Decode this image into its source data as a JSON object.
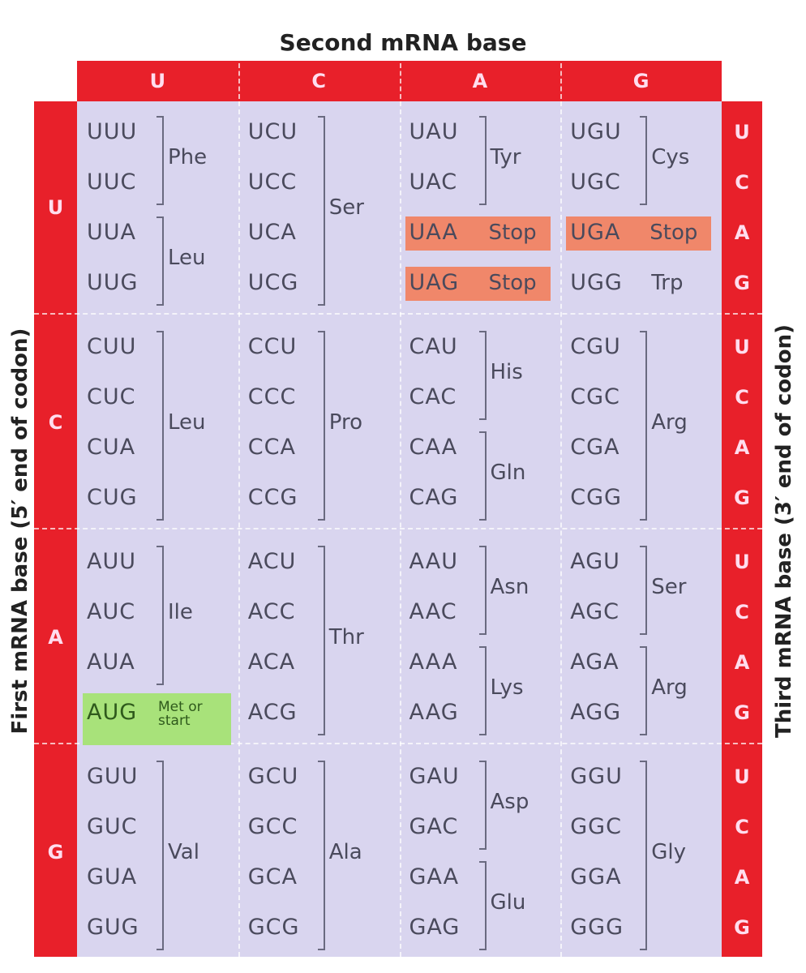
{
  "title": "Second mRNA base",
  "left_label": "First mRNA base  (5′ end of codon)",
  "right_label": "Third mRNA base  (3′ end of codon)",
  "second_bases": [
    "U",
    "C",
    "A",
    "G"
  ],
  "third_bases": [
    "U",
    "C",
    "A",
    "G"
  ],
  "colors": {
    "header": "#e8202a",
    "body": "#d9d5ef",
    "stop": "#f0876a",
    "start": "#a8e27a"
  },
  "rows": [
    {
      "base": "U",
      "cells": [
        {
          "codons": [
            "UUU",
            "UUC",
            "UUA",
            "UUG"
          ],
          "groups": [
            {
              "from": 0,
              "to": 1,
              "aa": "Phe"
            },
            {
              "from": 2,
              "to": 3,
              "aa": "Leu"
            }
          ]
        },
        {
          "codons": [
            "UCU",
            "UCC",
            "UCA",
            "UCG"
          ],
          "groups": [
            {
              "from": 0,
              "to": 3,
              "aa": "Ser"
            }
          ]
        },
        {
          "codons": [
            "UAU",
            "UAC",
            "UAA",
            "UAG"
          ],
          "groups": [
            {
              "from": 0,
              "to": 1,
              "aa": "Tyr"
            },
            {
              "from": 2,
              "to": 2,
              "aa": "Stop",
              "highlight": "stop"
            },
            {
              "from": 3,
              "to": 3,
              "aa": "Stop",
              "highlight": "stop"
            }
          ]
        },
        {
          "codons": [
            "UGU",
            "UGC",
            "UGA",
            "UGG"
          ],
          "groups": [
            {
              "from": 0,
              "to": 1,
              "aa": "Cys"
            },
            {
              "from": 2,
              "to": 2,
              "aa": "Stop",
              "highlight": "stop"
            },
            {
              "from": 3,
              "to": 3,
              "aa": "Trp"
            }
          ]
        }
      ]
    },
    {
      "base": "C",
      "cells": [
        {
          "codons": [
            "CUU",
            "CUC",
            "CUA",
            "CUG"
          ],
          "groups": [
            {
              "from": 0,
              "to": 3,
              "aa": "Leu"
            }
          ]
        },
        {
          "codons": [
            "CCU",
            "CCC",
            "CCA",
            "CCG"
          ],
          "groups": [
            {
              "from": 0,
              "to": 3,
              "aa": "Pro"
            }
          ]
        },
        {
          "codons": [
            "CAU",
            "CAC",
            "CAA",
            "CAG"
          ],
          "groups": [
            {
              "from": 0,
              "to": 1,
              "aa": "His"
            },
            {
              "from": 2,
              "to": 3,
              "aa": "Gln"
            }
          ]
        },
        {
          "codons": [
            "CGU",
            "CGC",
            "CGA",
            "CGG"
          ],
          "groups": [
            {
              "from": 0,
              "to": 3,
              "aa": "Arg"
            }
          ]
        }
      ]
    },
    {
      "base": "A",
      "cells": [
        {
          "codons": [
            "AUU",
            "AUC",
            "AUA",
            "AUG"
          ],
          "groups": [
            {
              "from": 0,
              "to": 2,
              "aa": "Ile"
            },
            {
              "from": 3,
              "to": 3,
              "aa": "Met or start",
              "highlight": "start"
            }
          ]
        },
        {
          "codons": [
            "ACU",
            "ACC",
            "ACA",
            "ACG"
          ],
          "groups": [
            {
              "from": 0,
              "to": 3,
              "aa": "Thr"
            }
          ]
        },
        {
          "codons": [
            "AAU",
            "AAC",
            "AAA",
            "AAG"
          ],
          "groups": [
            {
              "from": 0,
              "to": 1,
              "aa": "Asn"
            },
            {
              "from": 2,
              "to": 3,
              "aa": "Lys"
            }
          ]
        },
        {
          "codons": [
            "AGU",
            "AGC",
            "AGA",
            "AGG"
          ],
          "groups": [
            {
              "from": 0,
              "to": 1,
              "aa": "Ser"
            },
            {
              "from": 2,
              "to": 3,
              "aa": "Arg"
            }
          ]
        }
      ]
    },
    {
      "base": "G",
      "cells": [
        {
          "codons": [
            "GUU",
            "GUC",
            "GUA",
            "GUG"
          ],
          "groups": [
            {
              "from": 0,
              "to": 3,
              "aa": "Val"
            }
          ]
        },
        {
          "codons": [
            "GCU",
            "GCC",
            "GCA",
            "GCG"
          ],
          "groups": [
            {
              "from": 0,
              "to": 3,
              "aa": "Ala"
            }
          ]
        },
        {
          "codons": [
            "GAU",
            "GAC",
            "GAA",
            "GAG"
          ],
          "groups": [
            {
              "from": 0,
              "to": 1,
              "aa": "Asp"
            },
            {
              "from": 2,
              "to": 3,
              "aa": "Glu"
            }
          ]
        },
        {
          "codons": [
            "GGU",
            "GGC",
            "GGA",
            "GGG"
          ],
          "groups": [
            {
              "from": 0,
              "to": 3,
              "aa": "Gly"
            }
          ]
        }
      ]
    }
  ]
}
